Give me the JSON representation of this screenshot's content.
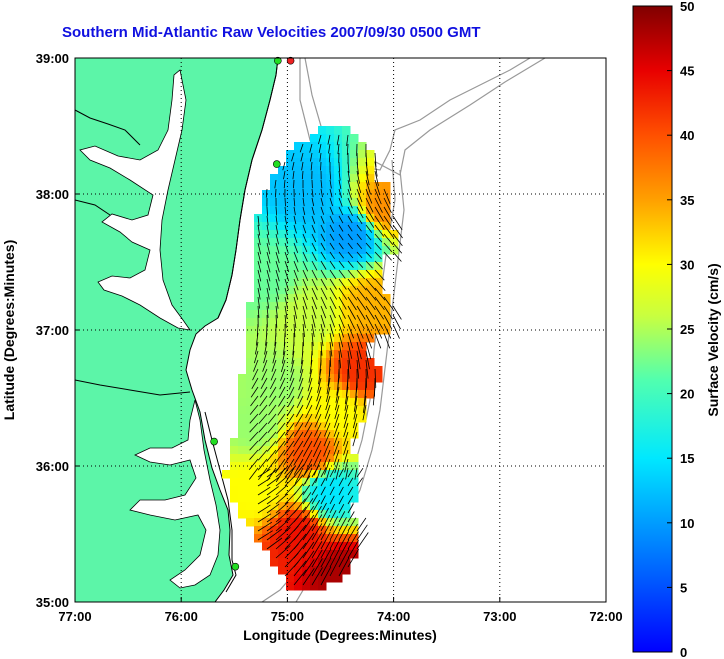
{
  "title": "Southern Mid-Atlantic Raw Velocities 2007/09/30 0500 GMT",
  "x_axis": {
    "label": "Longitude (Degrees:Minutes)",
    "ticks": [
      "77:00",
      "76:00",
      "75:00",
      "74:00",
      "73:00",
      "72:00"
    ]
  },
  "y_axis": {
    "label": "Latitude (Degrees:Minutes)",
    "ticks": [
      "39:00",
      "38:00",
      "37:00",
      "36:00",
      "35:00"
    ]
  },
  "colorbar": {
    "label": "Surface Velocity (cm/s)",
    "ticks": [
      "0",
      "5",
      "10",
      "15",
      "20",
      "25",
      "30",
      "35",
      "40",
      "45",
      "50"
    ],
    "range": [
      0,
      50
    ]
  },
  "colors": {
    "land": "#5cf5a8",
    "coast": "#000000",
    "bathymetry": "#999999",
    "title": "#1010e0",
    "station_green": "#22dd22",
    "station_red": "#ee2222"
  },
  "chart_data": {
    "type": "heatmap",
    "title": "Southern Mid-Atlantic Raw Velocities 2007/09/30 0500 GMT",
    "xlabel": "Longitude (Degrees:Minutes)",
    "ylabel": "Latitude (Degrees:Minutes)",
    "xlim": [
      -77,
      -72
    ],
    "ylim": [
      35,
      39
    ],
    "clim": [
      0,
      50
    ],
    "colormap": "jet",
    "colorbar_label": "Surface Velocity (cm/s)",
    "grid": true,
    "field_regions": [
      {
        "lon": -74.8,
        "lat": 38.0,
        "speed": 12
      },
      {
        "lon": -74.4,
        "lat": 37.7,
        "speed": 10
      },
      {
        "lon": -74.1,
        "lat": 37.9,
        "speed": 36
      },
      {
        "lon": -75.2,
        "lat": 37.4,
        "speed": 22
      },
      {
        "lon": -74.8,
        "lat": 37.1,
        "speed": 26
      },
      {
        "lon": -74.2,
        "lat": 37.2,
        "speed": 34
      },
      {
        "lon": -75.1,
        "lat": 36.6,
        "speed": 24
      },
      {
        "lon": -74.5,
        "lat": 36.4,
        "speed": 30
      },
      {
        "lon": -74.8,
        "lat": 36.1,
        "speed": 40
      },
      {
        "lon": -74.6,
        "lat": 35.8,
        "speed": 15
      },
      {
        "lon": -75.3,
        "lat": 35.8,
        "speed": 30
      },
      {
        "lon": -74.9,
        "lat": 35.5,
        "speed": 44
      },
      {
        "lon": -74.5,
        "lat": 35.2,
        "speed": 48
      },
      {
        "lon": -75.3,
        "lat": 36.3,
        "speed": 24
      },
      {
        "lon": -74.3,
        "lat": 36.7,
        "speed": 42
      }
    ],
    "stations": [
      {
        "lon": -75.09,
        "lat": 38.98,
        "color": "green"
      },
      {
        "lon": -74.97,
        "lat": 38.98,
        "color": "red"
      },
      {
        "lon": -75.1,
        "lat": 38.22,
        "color": "green"
      },
      {
        "lon": -75.69,
        "lat": 36.18,
        "color": "green"
      },
      {
        "lon": -75.49,
        "lat": 35.26,
        "color": "green"
      }
    ]
  }
}
